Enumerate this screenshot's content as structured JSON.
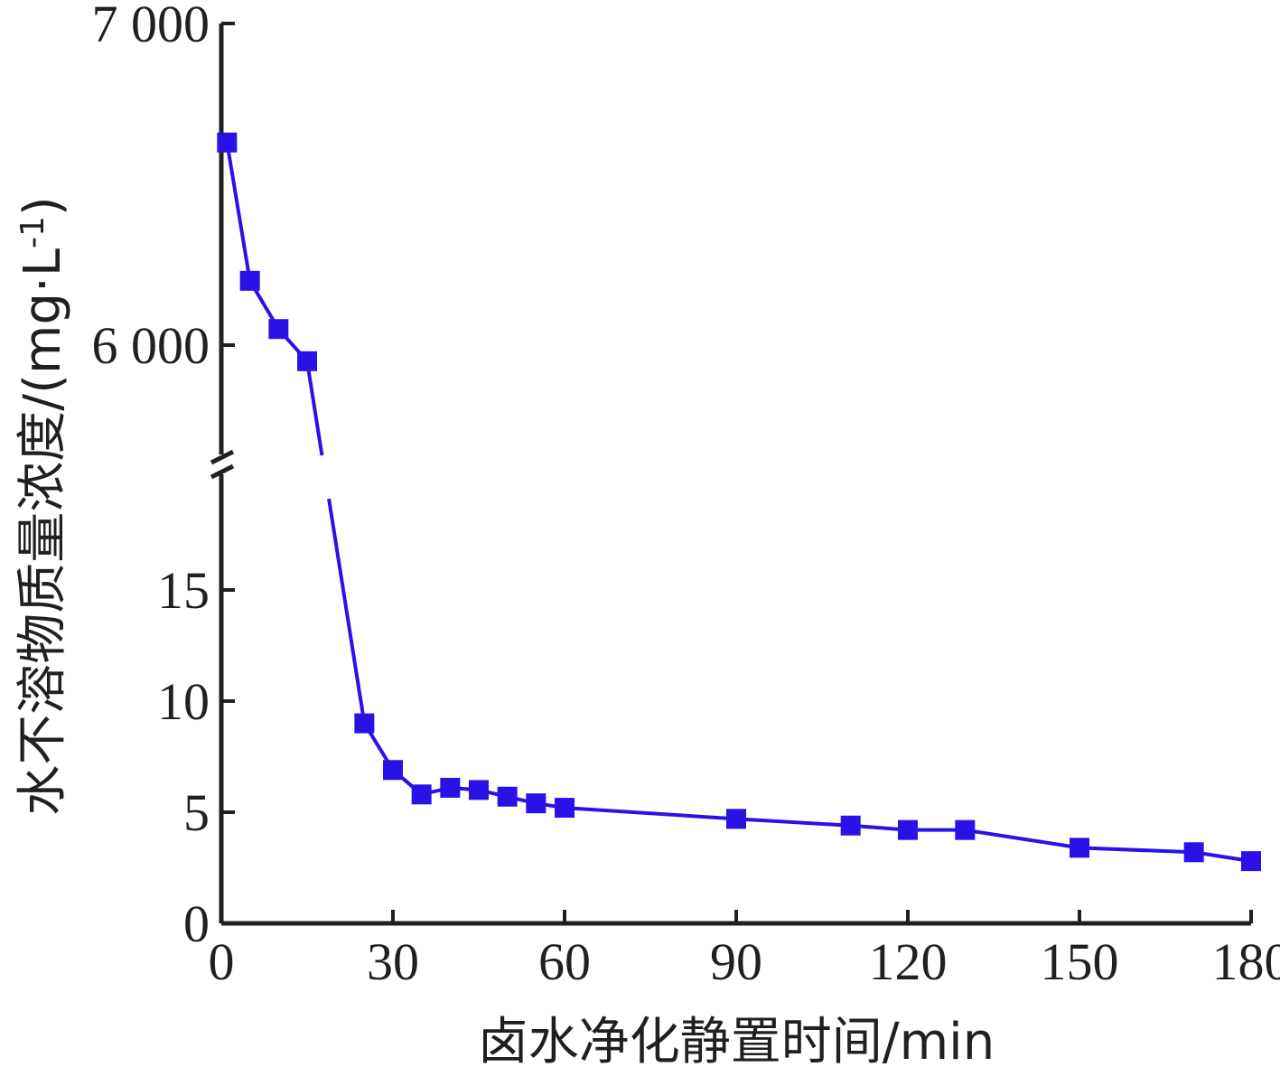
{
  "chart_data": {
    "type": "line",
    "title": "",
    "xlabel": "卤水净化静置时间/min",
    "ylabel": "水不溶物质量浓度/(mg·L",
    "ylabel_superscript": "-1",
    "ylabel_close": ")",
    "xlim": [
      0,
      180
    ],
    "x_ticks": [
      "0",
      "30",
      "60",
      "90",
      "120",
      "150",
      "180"
    ],
    "y_axis_broken": true,
    "y_lower_range": [
      0,
      20
    ],
    "y_lower_ticks": [
      "0",
      "5",
      "10",
      "15"
    ],
    "y_upper_range": [
      5600,
      7000
    ],
    "y_upper_ticks": [
      "6 000",
      "7 000"
    ],
    "marker": "square",
    "series_color": "#2a12e6",
    "series": [
      {
        "x": [
          1,
          5,
          10,
          15,
          25,
          30,
          35,
          40,
          45,
          50,
          55,
          60,
          90,
          110,
          120,
          130,
          150,
          170,
          180
        ],
        "y": [
          6630,
          6200,
          6050,
          5950,
          9.0,
          6.9,
          5.8,
          6.1,
          6.0,
          5.7,
          5.4,
          5.2,
          4.7,
          4.4,
          4.2,
          4.2,
          3.4,
          3.2,
          2.8
        ]
      }
    ]
  }
}
